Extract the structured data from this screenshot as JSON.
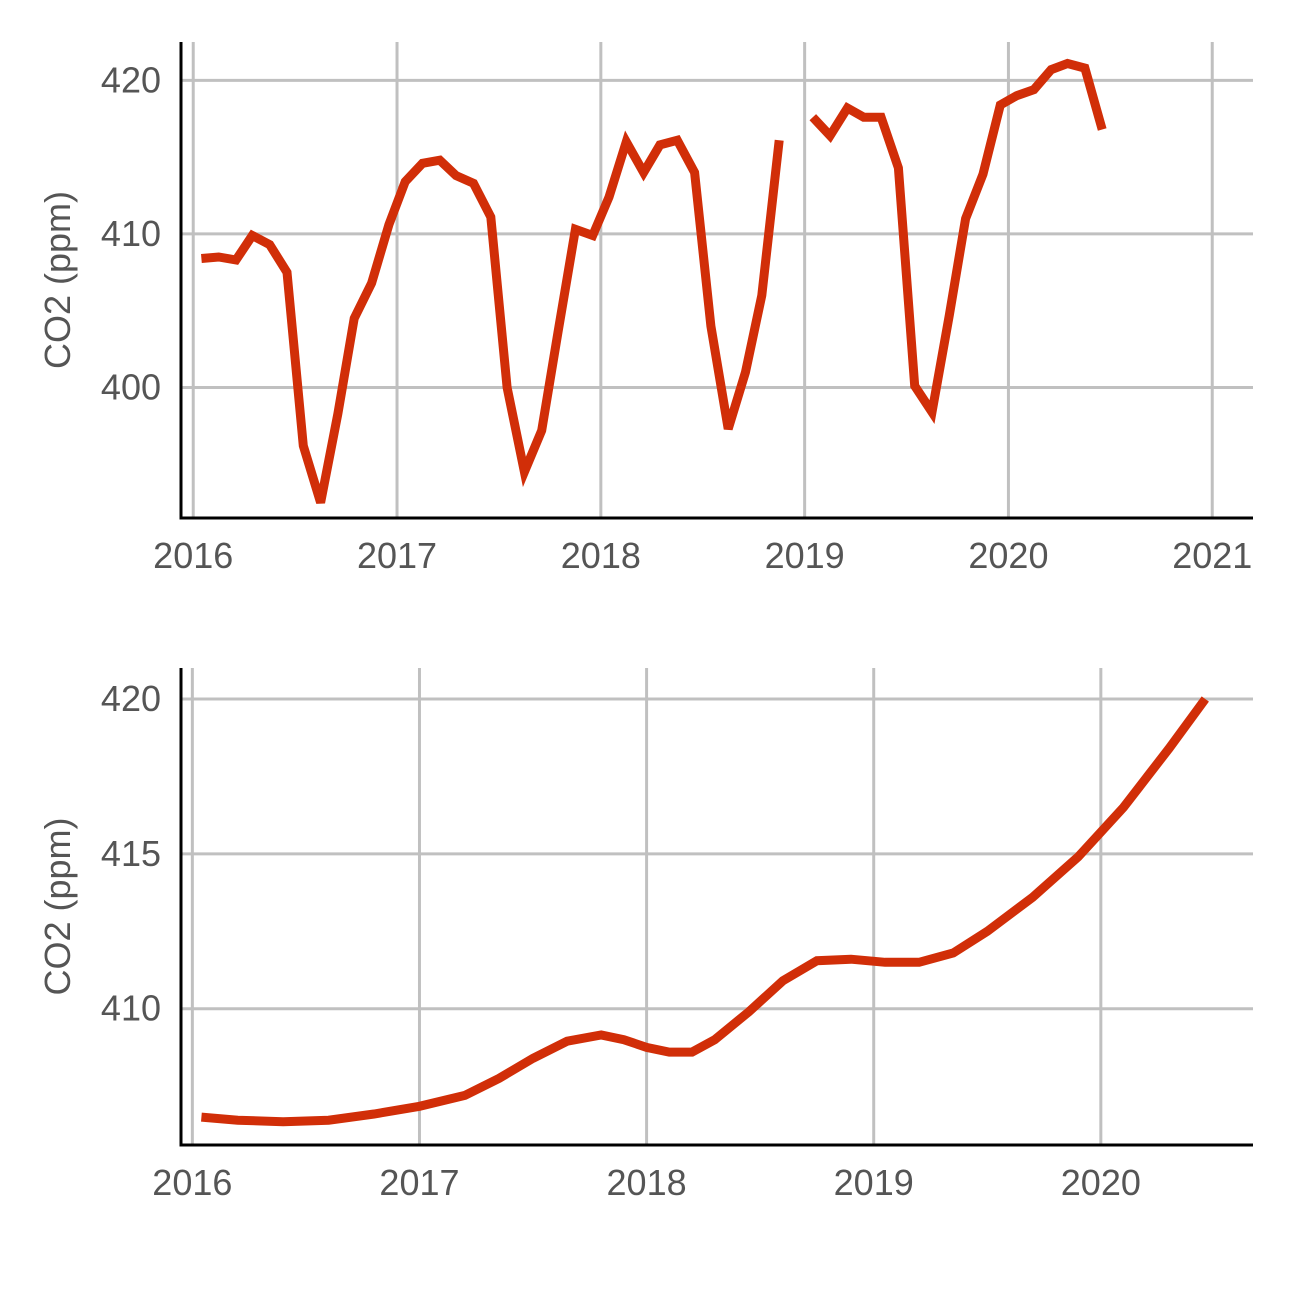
{
  "chart_data": [
    {
      "type": "line",
      "xlabel": "",
      "ylabel": "CO2 (ppm)",
      "xlim": [
        2015.94,
        2021.2
      ],
      "ylim": [
        391.5,
        422.5
      ],
      "xticks": [
        2016,
        2017,
        2018,
        2019,
        2020,
        2021
      ],
      "xtick_labels": [
        "2016",
        "2017",
        "2018",
        "2019",
        "2020",
        "2021"
      ],
      "yticks": [
        400,
        410,
        420
      ],
      "ytick_labels": [
        "400",
        "410",
        "420"
      ],
      "grid": true,
      "legend": "none",
      "line_color": "#D12E08",
      "series": [
        {
          "segments": [
            {
              "x": [
                2016.04,
                2016.125,
                2016.21,
                2016.29,
                2016.375,
                2016.46,
                2016.54,
                2016.625,
                2016.71,
                2016.79,
                2016.875,
                2016.96,
                2017.04,
                2017.125,
                2017.21,
                2017.29,
                2017.375,
                2017.46,
                2017.54,
                2017.625,
                2017.71,
                2017.79,
                2017.875,
                2017.96,
                2018.04,
                2018.125,
                2018.21,
                2018.29,
                2018.375,
                2018.46,
                2018.54,
                2018.625,
                2018.71,
                2018.79,
                2018.875
              ],
              "y": [
                408.4,
                408.5,
                408.3,
                409.9,
                409.3,
                407.5,
                396.2,
                392.5,
                398.3,
                404.5,
                406.8,
                410.6,
                413.4,
                414.6,
                414.8,
                413.8,
                413.3,
                411.1,
                400.0,
                394.5,
                397.2,
                403.6,
                410.3,
                409.9,
                412.4,
                416.0,
                414.0,
                415.8,
                416.1,
                414.0,
                404.0,
                397.3,
                401.0,
                406.0,
                416.1
              ]
            },
            {
              "x": [
                2019.04,
                2019.125,
                2019.21,
                2019.29,
                2019.375,
                2019.46,
                2019.54,
                2019.625,
                2019.71,
                2019.79,
                2019.875,
                2019.96,
                2020.04,
                2020.125,
                2020.21,
                2020.29,
                2020.375,
                2020.46
              ],
              "y": [
                417.6,
                416.4,
                418.2,
                417.6,
                417.6,
                414.3,
                400.1,
                398.4,
                404.7,
                411.0,
                413.9,
                418.4,
                419.0,
                419.4,
                420.7,
                421.1,
                420.8,
                416.8
              ]
            }
          ]
        }
      ]
    },
    {
      "type": "line",
      "xlabel": "",
      "ylabel": "CO2 (ppm)",
      "xlim": [
        2015.95,
        2020.67
      ],
      "ylim": [
        405.6,
        421.0
      ],
      "xticks": [
        2016,
        2017,
        2018,
        2019,
        2020
      ],
      "xtick_labels": [
        "2016",
        "2017",
        "2018",
        "2019",
        "2020"
      ],
      "yticks": [
        410,
        415,
        420
      ],
      "ytick_labels": [
        "410",
        "415",
        "420"
      ],
      "grid": true,
      "legend": "none",
      "line_color": "#D12E08",
      "series": [
        {
          "x": [
            2016.04,
            2016.2,
            2016.4,
            2016.6,
            2016.8,
            2017.0,
            2017.2,
            2017.35,
            2017.5,
            2017.65,
            2017.8,
            2017.9,
            2018.0,
            2018.1,
            2018.2,
            2018.3,
            2018.45,
            2018.6,
            2018.75,
            2018.9,
            2019.05,
            2019.2,
            2019.35,
            2019.5,
            2019.7,
            2019.9,
            2020.1,
            2020.3,
            2020.46
          ],
          "y": [
            406.5,
            406.4,
            406.35,
            406.4,
            406.6,
            406.85,
            407.2,
            407.75,
            408.4,
            408.95,
            409.15,
            409.0,
            408.75,
            408.6,
            408.6,
            409.0,
            409.9,
            410.9,
            411.55,
            411.6,
            411.5,
            411.5,
            411.8,
            412.5,
            413.6,
            414.9,
            416.5,
            418.4,
            420.0
          ]
        }
      ]
    }
  ]
}
